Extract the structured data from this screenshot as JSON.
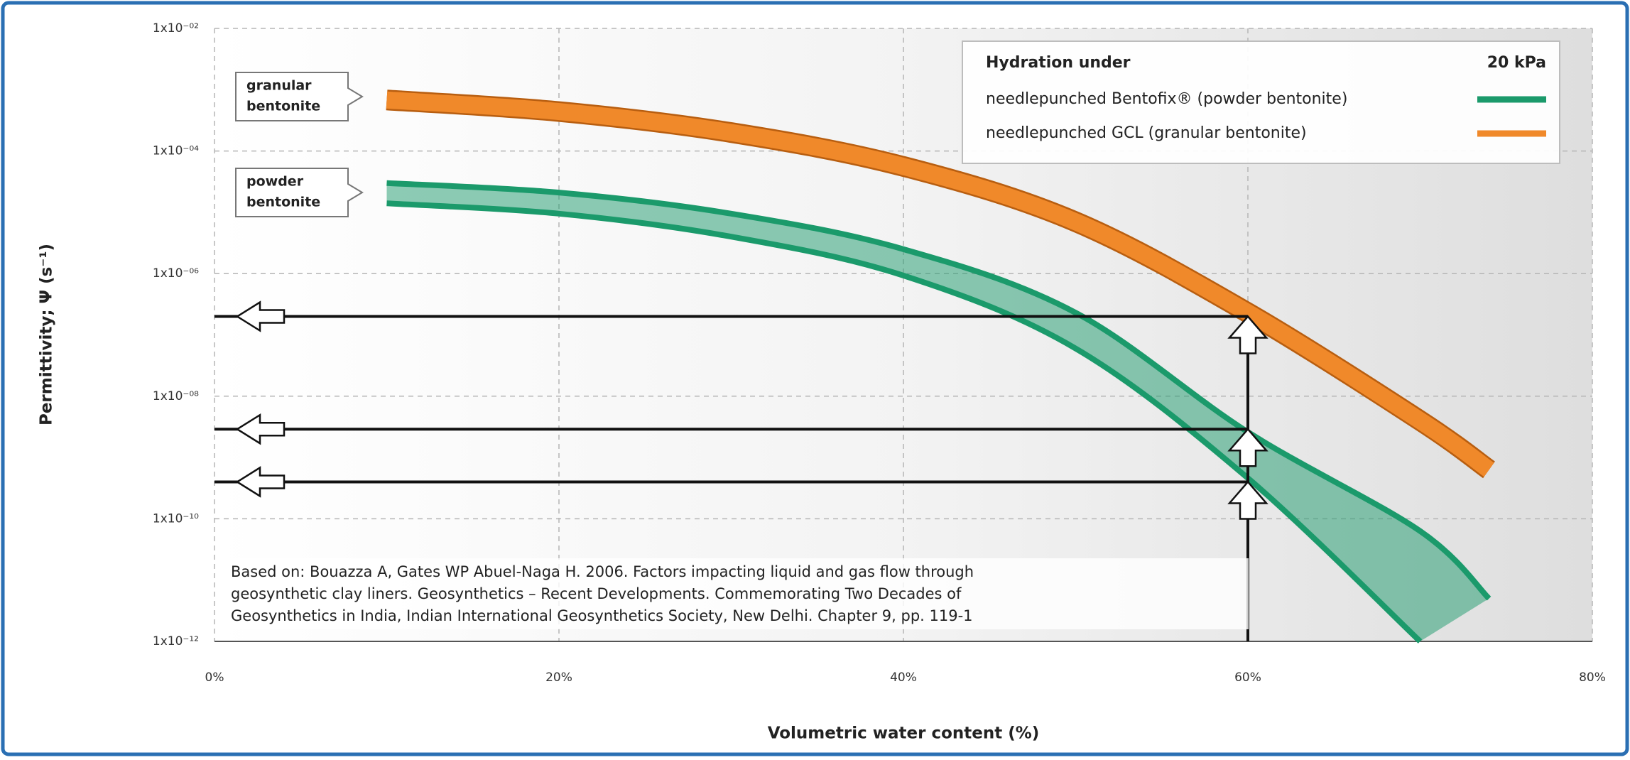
{
  "chart_data": {
    "type": "line",
    "x_label": "Volumetric water content (%)",
    "y_label": "Permittivity; Ψ (s⁻¹)",
    "xlim": [
      0,
      80
    ],
    "xticks": [
      {
        "value": 0,
        "label": "0%"
      },
      {
        "value": 20,
        "label": "20%"
      },
      {
        "value": 40,
        "label": "40%"
      },
      {
        "value": 60,
        "label": "60%"
      },
      {
        "value": 80,
        "label": "80%"
      }
    ],
    "ylim": [
      1e-12,
      0.01
    ],
    "yscale": "log",
    "yticks": [
      {
        "value": 0.01,
        "label": "1x10⁻⁰²"
      },
      {
        "value": 0.0001,
        "label": "1x10⁻⁰⁴"
      },
      {
        "value": 1e-06,
        "label": "1x10⁻⁰⁶"
      },
      {
        "value": 1e-08,
        "label": "1x10⁻⁰⁸"
      },
      {
        "value": 1e-10,
        "label": "1x10⁻¹⁰"
      },
      {
        "value": 1e-12,
        "label": "1x10⁻¹²"
      }
    ],
    "grid": true,
    "legend_title": "Hydration under",
    "legend_condition": "20 kPa",
    "legend_position": "top-right",
    "series": [
      {
        "name": "needlepunched Bentofix® (powder bentonite)",
        "color": "#1b9a6b",
        "upper": {
          "x": [
            10,
            20,
            30,
            40,
            50,
            60,
            70,
            74
          ],
          "values": [
            3e-05,
            2.1e-05,
            9.5e-06,
            2.5e-06,
            2.3e-07,
            2.6e-09,
            6.3e-11,
            5e-12
          ]
        },
        "lower": {
          "x": [
            10,
            20,
            30,
            40,
            50,
            60,
            70
          ],
          "values": [
            1.4e-05,
            9.5e-06,
            4e-06,
            9.3e-07,
            6e-08,
            4.6e-10,
            1e-12
          ]
        }
      },
      {
        "name": "needlepunched GCL (granular bentonite)",
        "color": "#f0892a",
        "x": [
          10,
          20,
          30,
          40,
          50,
          60,
          70,
          74
        ],
        "values": [
          0.00068,
          0.00044,
          0.0002,
          5.6e-05,
          7e-06,
          2.3e-07,
          4e-09,
          6.3e-10
        ]
      }
    ],
    "reference_x": 60,
    "reference_levels": [
      2e-07,
      2.9e-09,
      4e-10
    ],
    "annotations": [
      [
        "granular",
        "bentonite"
      ],
      [
        "powder",
        "bentonite"
      ]
    ],
    "citation": [
      "Based on: Bouazza A, Gates WP Abuel-Naga H. 2006.  Factors impacting liquid and gas flow through",
      "geosynthetic clay liners. Geosynthetics – Recent Developments. Commemorating Two Decades of",
      "Geosynthetics in India, Indian International Geosynthetics Society, New Delhi. Chapter 9, pp. 119-1"
    ]
  }
}
